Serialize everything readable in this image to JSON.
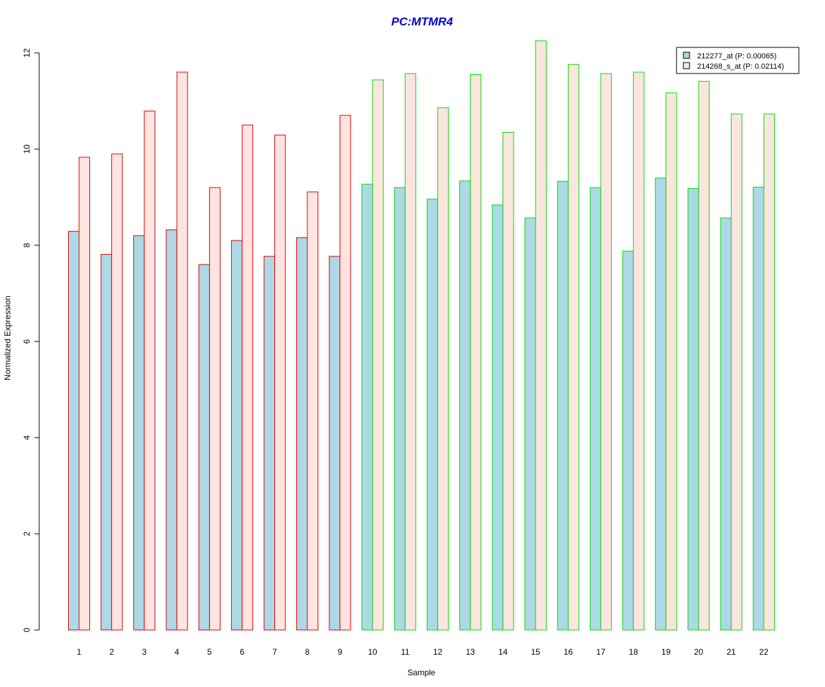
{
  "chart_data": {
    "type": "bar",
    "title": "PC:MTMR4",
    "xlabel": "Sample",
    "ylabel": "Normalized Expression",
    "ylim": [
      0,
      12.25
    ],
    "yticks": [
      "0",
      "2",
      "4",
      "6",
      "8",
      "10",
      "12"
    ],
    "categories": [
      "1",
      "2",
      "3",
      "4",
      "5",
      "6",
      "7",
      "8",
      "9",
      "10",
      "11",
      "12",
      "13",
      "14",
      "15",
      "16",
      "17",
      "18",
      "19",
      "20",
      "21",
      "22"
    ],
    "group_border_colors": [
      "#dd0000",
      "#dd0000",
      "#dd0000",
      "#dd0000",
      "#dd0000",
      "#dd0000",
      "#dd0000",
      "#dd0000",
      "#dd0000",
      "#00dd00",
      "#00dd00",
      "#00dd00",
      "#00dd00",
      "#00dd00",
      "#00dd00",
      "#00dd00",
      "#00dd00",
      "#00dd00",
      "#00dd00",
      "#00dd00",
      "#00dd00",
      "#00dd00"
    ],
    "series": [
      {
        "name": "212277_at (P: 0.00065)",
        "fill": "#add8e6",
        "values": [
          8.29,
          7.81,
          8.2,
          8.32,
          7.6,
          8.1,
          7.77,
          8.16,
          7.77,
          9.27,
          9.2,
          8.96,
          9.34,
          8.84,
          8.57,
          9.33,
          9.2,
          7.88,
          9.4,
          9.18,
          8.57,
          9.21
        ]
      },
      {
        "name": "214268_s_at (P: 0.02114)",
        "fill_red_group": "#ffe4e1",
        "fill": "#fbe6df",
        "values": [
          9.83,
          9.9,
          10.79,
          11.6,
          9.2,
          10.5,
          10.29,
          9.11,
          10.7,
          11.44,
          11.57,
          10.86,
          11.55,
          10.35,
          12.25,
          11.76,
          11.57,
          11.6,
          11.17,
          11.41,
          10.73,
          10.73
        ]
      }
    ],
    "legend_position": "top-right",
    "grid": false
  }
}
